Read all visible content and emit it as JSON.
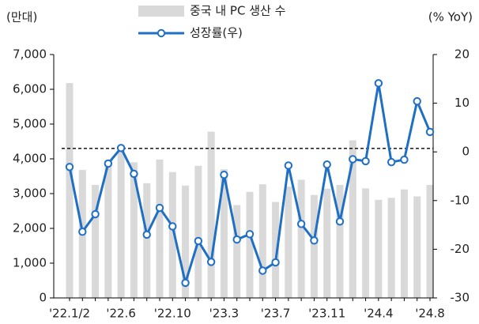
{
  "chart_data": {
    "type": "bar-line",
    "y_label": "(만대)",
    "y2_label": "(% YoY)",
    "categories": [
      "'22.1/2",
      null,
      null,
      null,
      "'22.6",
      null,
      null,
      null,
      "'22.10",
      null,
      null,
      null,
      "'23.3",
      null,
      null,
      null,
      "'23.7",
      null,
      null,
      null,
      "'23.11",
      null,
      null,
      null,
      "'24.4",
      null,
      null,
      null,
      "'24.8"
    ],
    "series": [
      {
        "name": "중국 내 PC 생산 수",
        "type": "bar",
        "color": "#d9d9d9",
        "values": [
          6180,
          3680,
          3250,
          3950,
          4250,
          3900,
          3300,
          3980,
          3620,
          3230,
          3800,
          4780,
          3700,
          2670,
          3050,
          3270,
          2760,
          3200,
          3400,
          2960,
          3140,
          3250,
          4530,
          3150,
          2820,
          2880,
          3120,
          2920,
          3250
        ]
      },
      {
        "name": "성장률(우)",
        "type": "line",
        "axis": "y2",
        "color": "#1f6fc5",
        "values": [
          -3.1,
          -16.4,
          -12.8,
          -2.4,
          0.8,
          -4.5,
          -17.0,
          -11.5,
          -15.3,
          -26.9,
          -18.3,
          -22.6,
          -4.7,
          -18.0,
          -16.9,
          -24.4,
          -22.7,
          -2.8,
          -14.8,
          -18.2,
          -2.6,
          -14.3,
          -1.5,
          -1.9,
          14.1,
          -2.1,
          -1.6,
          10.4,
          4.1
        ]
      }
    ],
    "reference_line": {
      "value": 4300,
      "axis": "y",
      "style": "dashed",
      "color": "#000000"
    },
    "ylim": [
      0,
      7000
    ],
    "yticks": [
      0,
      {
        "value": 1000,
        "label": "1,000"
      },
      {
        "value": 2000,
        "label": "2,000"
      },
      {
        "value": 3000,
        "label": "3,000"
      },
      {
        "value": 4000,
        "label": "4,000"
      },
      {
        "value": 5000,
        "label": "5,000"
      },
      {
        "value": 6000,
        "label": "6,000"
      },
      {
        "value": 7000,
        "label": "7,000"
      }
    ],
    "y2lim": [
      -30,
      20
    ],
    "y2ticks": [
      -30,
      -20,
      -10,
      0,
      10,
      20
    ],
    "grid": false
  }
}
